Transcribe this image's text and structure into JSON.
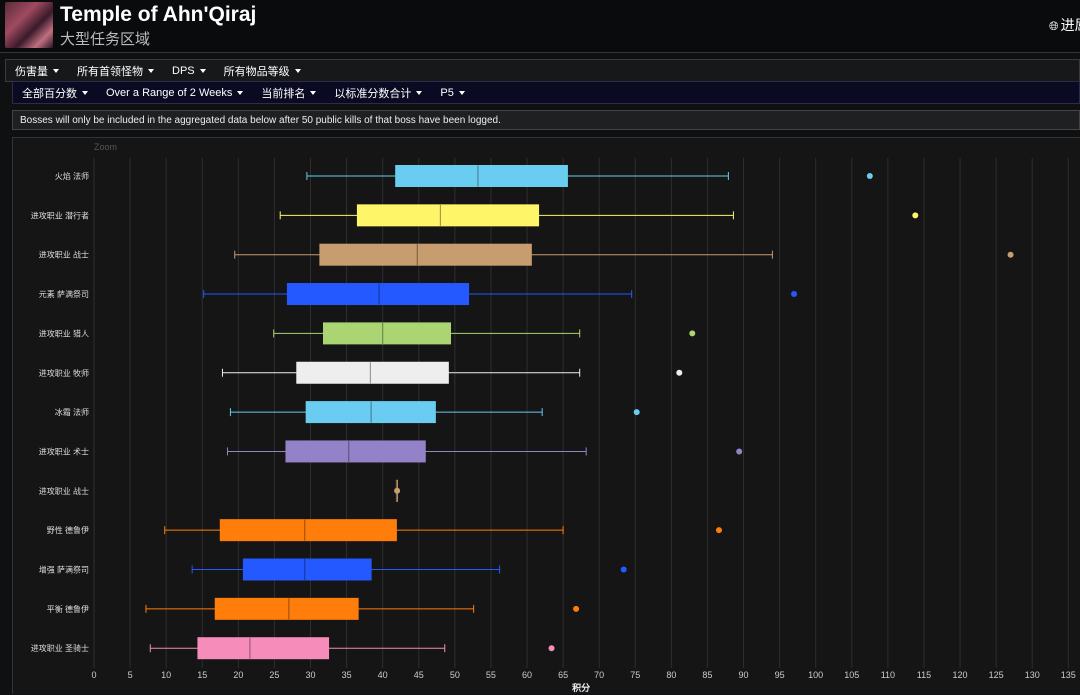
{
  "header": {
    "title": "Temple of Ahn'Qiraj",
    "subtitle": "大型任务区域",
    "lang_icon": "globe-icon",
    "lang_label": "进屈"
  },
  "menubar1": [
    {
      "label": "伤害量"
    },
    {
      "label": "所有首领怪物"
    },
    {
      "label": "DPS"
    },
    {
      "label": "所有物品等级"
    }
  ],
  "menubar2": [
    {
      "label": "全部百分数"
    },
    {
      "label": "Over a Range of 2 Weeks"
    },
    {
      "label": "当前排名"
    },
    {
      "label": "以标准分数合计"
    },
    {
      "label": "P5"
    }
  ],
  "notice": "Bosses will only be included in the aggregated data below after 50 public kills of that boss have been logged.",
  "chart": {
    "zoom_label": "Zoom"
  },
  "chart_data": {
    "type": "boxplot",
    "orientation": "horizontal",
    "xlabel": "积分",
    "xlim": [
      0,
      135
    ],
    "xticks": [
      0,
      5,
      10,
      15,
      20,
      25,
      30,
      35,
      40,
      45,
      50,
      55,
      60,
      65,
      70,
      75,
      80,
      85,
      90,
      95,
      100,
      105,
      110,
      115,
      120,
      125,
      130,
      135
    ],
    "grid": true,
    "categories": [
      {
        "label": "火焰 法师",
        "color": "#69ccf0",
        "min": 29.5,
        "q1": 41.8,
        "median": 53.2,
        "q3": 65.6,
        "max": 87.9,
        "outlier": 107.5
      },
      {
        "label": "进攻职业 潜行者",
        "color": "#fff569",
        "min": 25.8,
        "q1": 36.5,
        "median": 48.0,
        "q3": 61.6,
        "max": 88.6,
        "outlier": 113.8
      },
      {
        "label": "进攻职业 战士",
        "color": "#c79c6e",
        "min": 19.5,
        "q1": 31.3,
        "median": 44.8,
        "q3": 60.6,
        "max": 94.0,
        "outlier": 127.0
      },
      {
        "label": "元素 萨满祭司",
        "color": "#2459ff",
        "min": 15.2,
        "q1": 26.8,
        "median": 39.5,
        "q3": 51.9,
        "max": 74.5,
        "outlier": 97.0
      },
      {
        "label": "进攻职业 猎人",
        "color": "#abd473",
        "min": 24.9,
        "q1": 31.8,
        "median": 40.0,
        "q3": 49.4,
        "max": 67.3,
        "outlier": 82.9
      },
      {
        "label": "进攻职业 牧师",
        "color": "#eeeeee",
        "min": 17.8,
        "q1": 28.1,
        "median": 38.3,
        "q3": 49.1,
        "max": 67.3,
        "outlier": 81.1
      },
      {
        "label": "冰霜 法师",
        "color": "#69ccf0",
        "min": 18.9,
        "q1": 29.4,
        "median": 38.4,
        "q3": 47.3,
        "max": 62.1,
        "outlier": 75.2
      },
      {
        "label": "进攻职业 术士",
        "color": "#9482c9",
        "min": 18.5,
        "q1": 26.6,
        "median": 35.3,
        "q3": 45.9,
        "max": 68.2,
        "outlier": 89.4
      },
      {
        "label": "进攻职业 战士",
        "color": "#c79c6e",
        "min": 41.9,
        "q1": 41.9,
        "median": 41.9,
        "q3": 42.0,
        "max": 42.0,
        "outlier": 42.0
      },
      {
        "label": "野性 德鲁伊",
        "color": "#ff7d0a",
        "min": 9.8,
        "q1": 17.5,
        "median": 29.2,
        "q3": 41.9,
        "max": 65.0,
        "outlier": 86.6
      },
      {
        "label": "增强 萨满祭司",
        "color": "#2459ff",
        "min": 13.6,
        "q1": 20.7,
        "median": 29.2,
        "q3": 38.4,
        "max": 56.2,
        "outlier": 73.4
      },
      {
        "label": "平衡 德鲁伊",
        "color": "#ff7d0a",
        "min": 7.2,
        "q1": 16.8,
        "median": 27.0,
        "q3": 36.6,
        "max": 52.6,
        "outlier": 66.8
      },
      {
        "label": "进攻职业 圣骑士",
        "color": "#f58cba",
        "min": 7.8,
        "q1": 14.4,
        "median": 21.6,
        "q3": 32.5,
        "max": 48.6,
        "outlier": 63.4
      }
    ]
  }
}
